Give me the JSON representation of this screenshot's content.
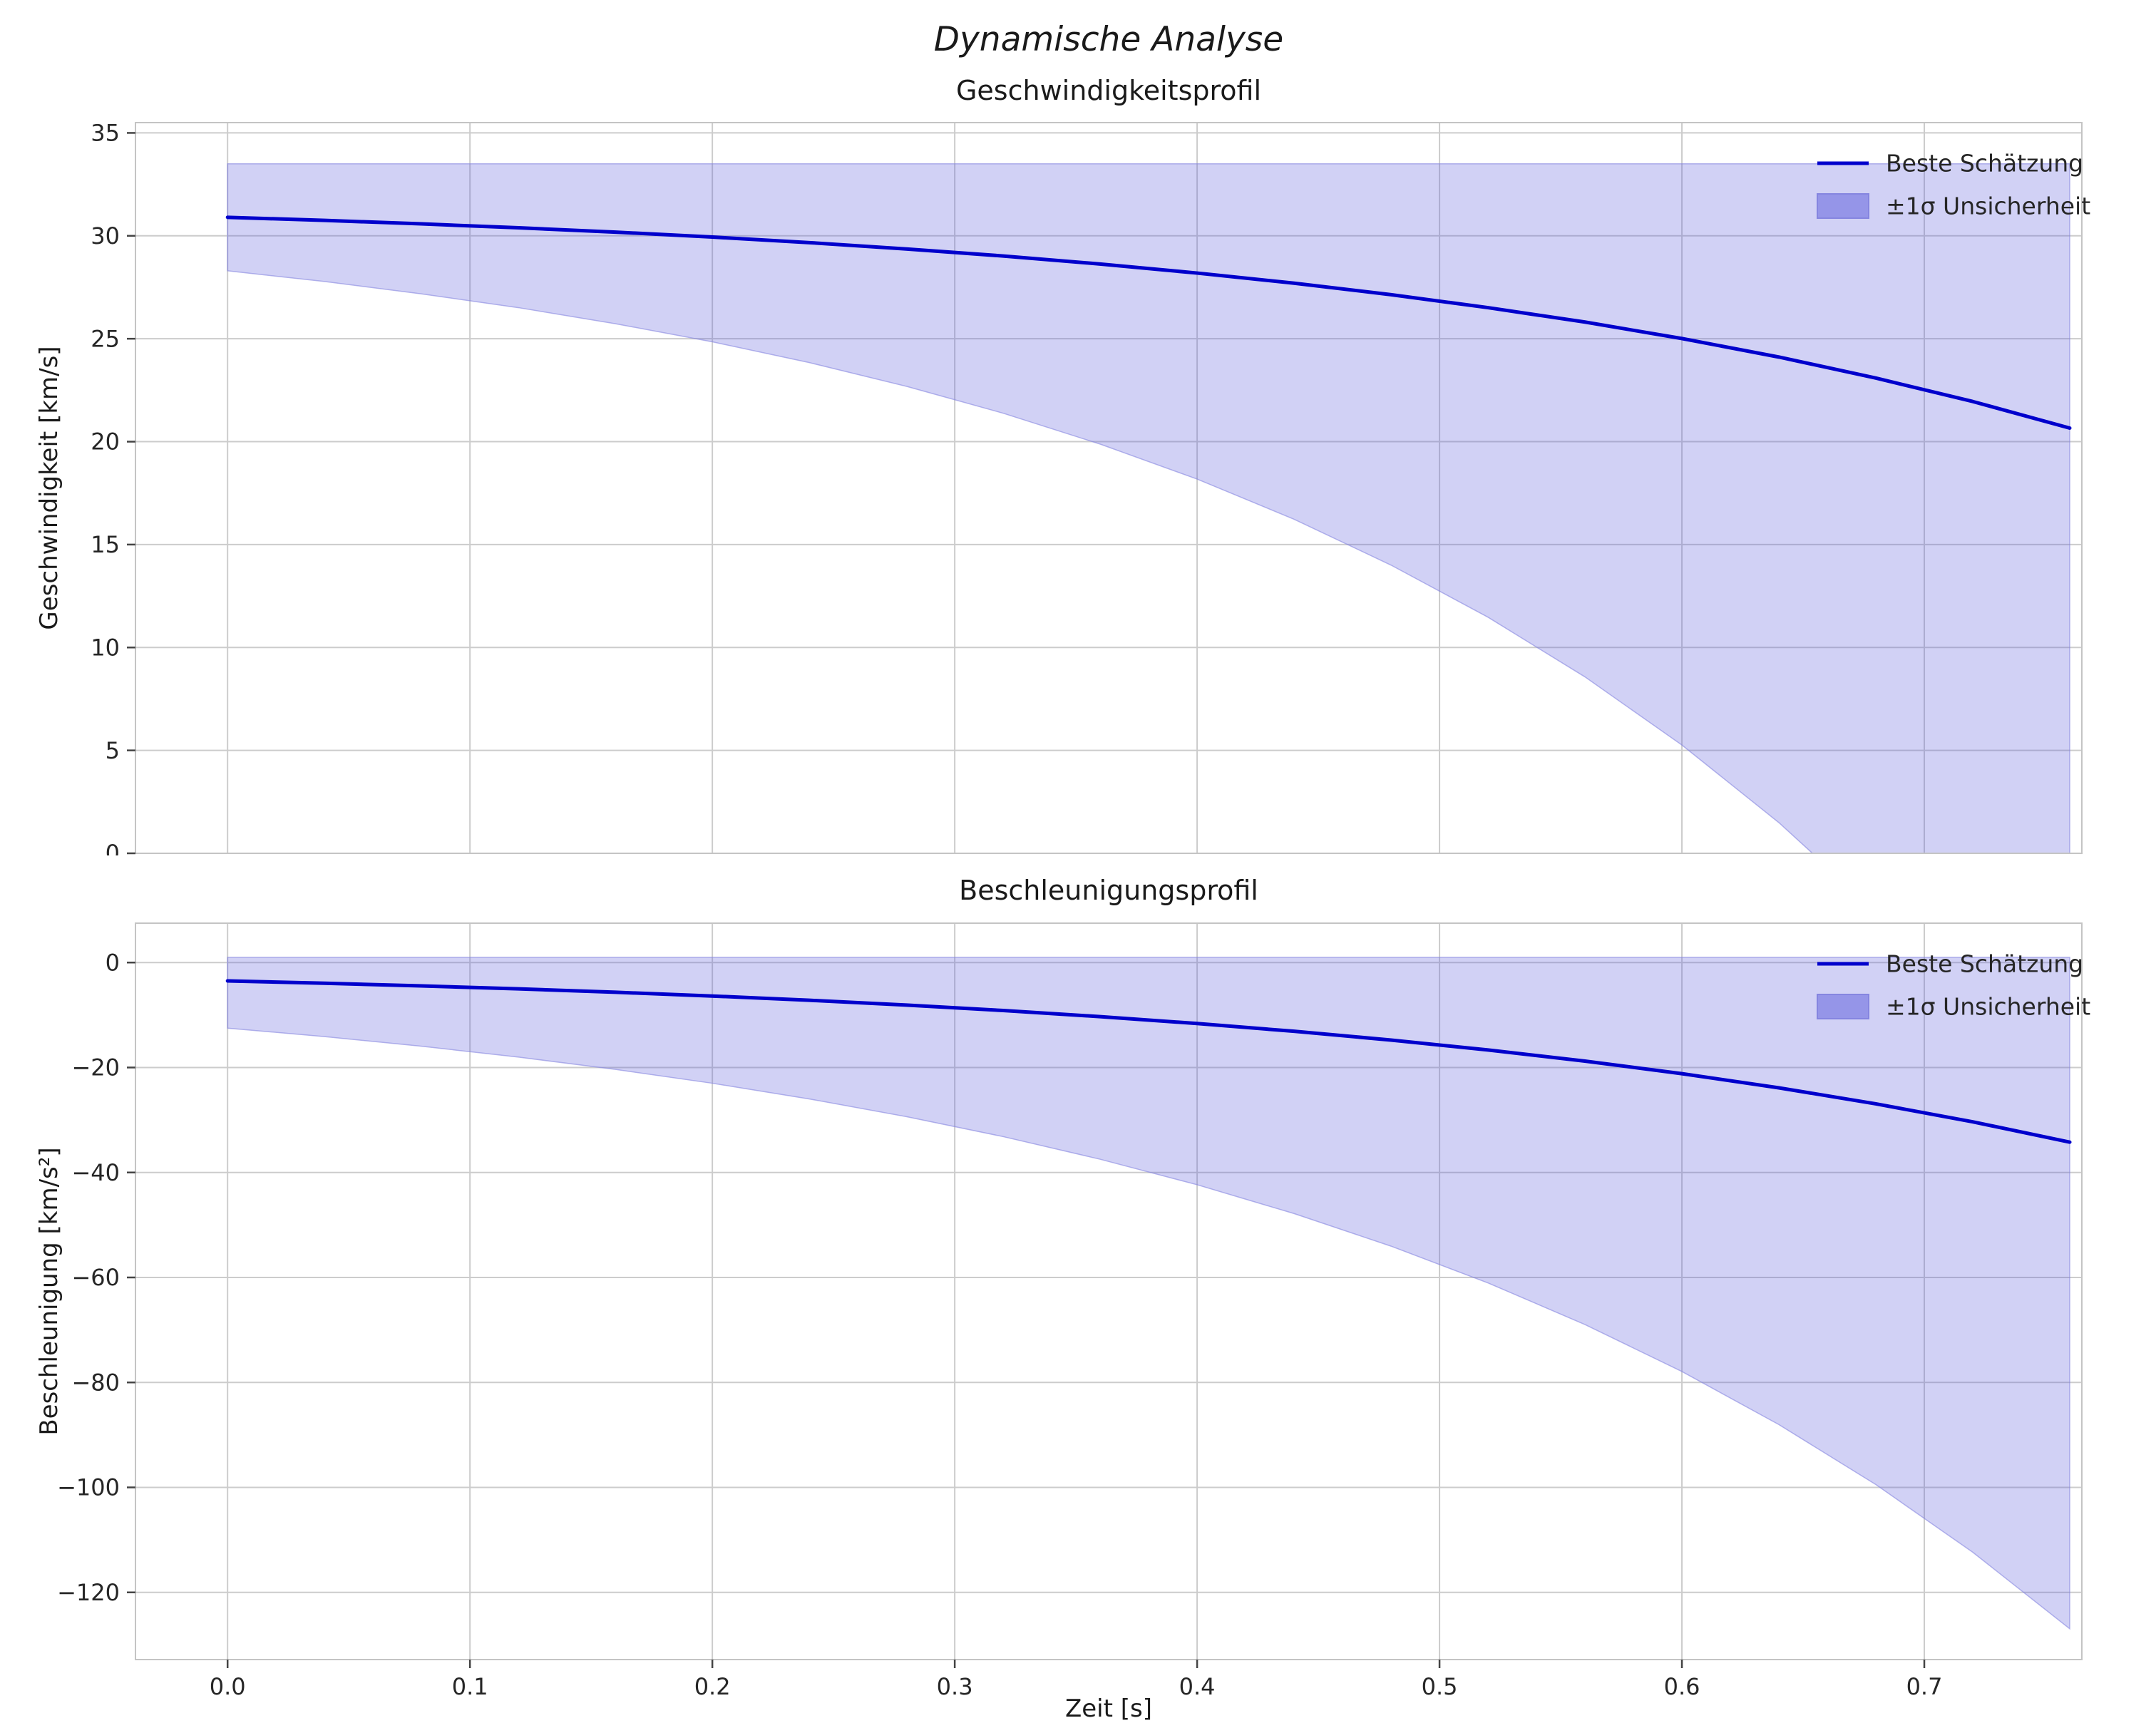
{
  "figure": {
    "title": "Dynamische Analyse",
    "background": "#ffffff"
  },
  "style": {
    "line_color": "#0000cc",
    "band_fill": "#5a5adc",
    "band_opacity": 0.28,
    "band_edge": "#8585e0",
    "grid_color": "#cccccc",
    "spine_color": "#c4c4c4",
    "tick_color": "#444444",
    "text_color": "#1a1a1a",
    "tick_label_color": "#262626"
  },
  "chart_data": [
    {
      "type": "line",
      "title": "Geschwindigkeitsprofil",
      "xlabel": "",
      "ylabel": "Geschwindigkeit [km/s]",
      "xlim": [
        -0.038,
        0.765
      ],
      "ylim": [
        0,
        35.5
      ],
      "xticks": [
        0.0,
        0.1,
        0.2,
        0.3,
        0.4,
        0.5,
        0.6,
        0.7
      ],
      "yticks": [
        0,
        5,
        10,
        15,
        20,
        25,
        30,
        35
      ],
      "show_xticklabels": false,
      "legend_position": "upper right",
      "grid": true,
      "x": [
        0,
        0.04,
        0.08,
        0.12,
        0.16,
        0.2,
        0.24,
        0.28,
        0.32,
        0.36,
        0.4,
        0.44,
        0.48,
        0.52,
        0.56,
        0.6,
        0.64,
        0.68,
        0.72,
        0.76
      ],
      "series": [
        {
          "name": "Beste Schätzung",
          "values": [
            30.9,
            30.75,
            30.58,
            30.39,
            30.18,
            29.94,
            29.67,
            29.36,
            29.02,
            28.63,
            28.19,
            27.7,
            27.14,
            26.51,
            25.81,
            25.01,
            24.11,
            23.09,
            21.95,
            20.66
          ]
        }
      ],
      "band": {
        "name": "±1σ Unsicherheit",
        "upper": [
          33.5,
          33.5,
          33.5,
          33.5,
          33.5,
          33.5,
          33.5,
          33.5,
          33.5,
          33.5,
          33.5,
          33.5,
          33.5,
          33.5,
          33.5,
          33.5,
          33.5,
          33.5,
          33.5,
          33.5
        ],
        "lower": [
          28.3,
          27.78,
          27.18,
          26.51,
          25.73,
          24.85,
          23.84,
          22.69,
          21.38,
          19.88,
          18.18,
          16.23,
          14.0,
          11.47,
          8.57,
          5.26,
          1.49,
          -2.81,
          -7.72,
          -13.33
        ]
      },
      "legend": [
        "Beste Schätzung",
        "±1σ Unsicherheit"
      ]
    },
    {
      "type": "line",
      "title": "Beschleunigungsprofil",
      "xlabel": "Zeit [s]",
      "ylabel": "Beschleunigung [km/s²]",
      "xlim": [
        -0.038,
        0.765
      ],
      "ylim": [
        -132.8,
        7.5
      ],
      "xticks": [
        0.0,
        0.1,
        0.2,
        0.3,
        0.4,
        0.5,
        0.6,
        0.7
      ],
      "yticks": [
        0,
        -20,
        -40,
        -60,
        -80,
        -100,
        -120
      ],
      "show_xticklabels": true,
      "legend_position": "upper right",
      "grid": true,
      "x": [
        0,
        0.04,
        0.08,
        0.12,
        0.16,
        0.2,
        0.24,
        0.28,
        0.32,
        0.36,
        0.4,
        0.44,
        0.48,
        0.52,
        0.56,
        0.6,
        0.64,
        0.68,
        0.72,
        0.76
      ],
      "series": [
        {
          "name": "Beste Schätzung",
          "values": [
            -3.5,
            -3.95,
            -4.45,
            -5.02,
            -5.66,
            -6.38,
            -7.19,
            -8.11,
            -9.14,
            -10.31,
            -11.62,
            -13.1,
            -14.77,
            -16.66,
            -18.78,
            -21.17,
            -23.87,
            -26.92,
            -30.35,
            -34.22
          ]
        }
      ],
      "band": {
        "name": "±1σ Unsicherheit",
        "upper": [
          1.0,
          1.0,
          1.0,
          1.0,
          1.0,
          1.0,
          1.0,
          1.0,
          1.0,
          1.0,
          1.0,
          1.0,
          1.0,
          1.0,
          1.0,
          1.0,
          1.0,
          1.0,
          1.0,
          1.0
        ],
        "lower": [
          -12.5,
          -14.12,
          -15.95,
          -18.02,
          -20.36,
          -23.0,
          -25.99,
          -29.36,
          -33.17,
          -37.48,
          -42.34,
          -47.83,
          -54.04,
          -61.05,
          -68.97,
          -77.92,
          -88.03,
          -99.46,
          -112.36,
          -126.94
        ]
      },
      "legend": [
        "Beste Schätzung",
        "±1σ Unsicherheit"
      ]
    }
  ]
}
